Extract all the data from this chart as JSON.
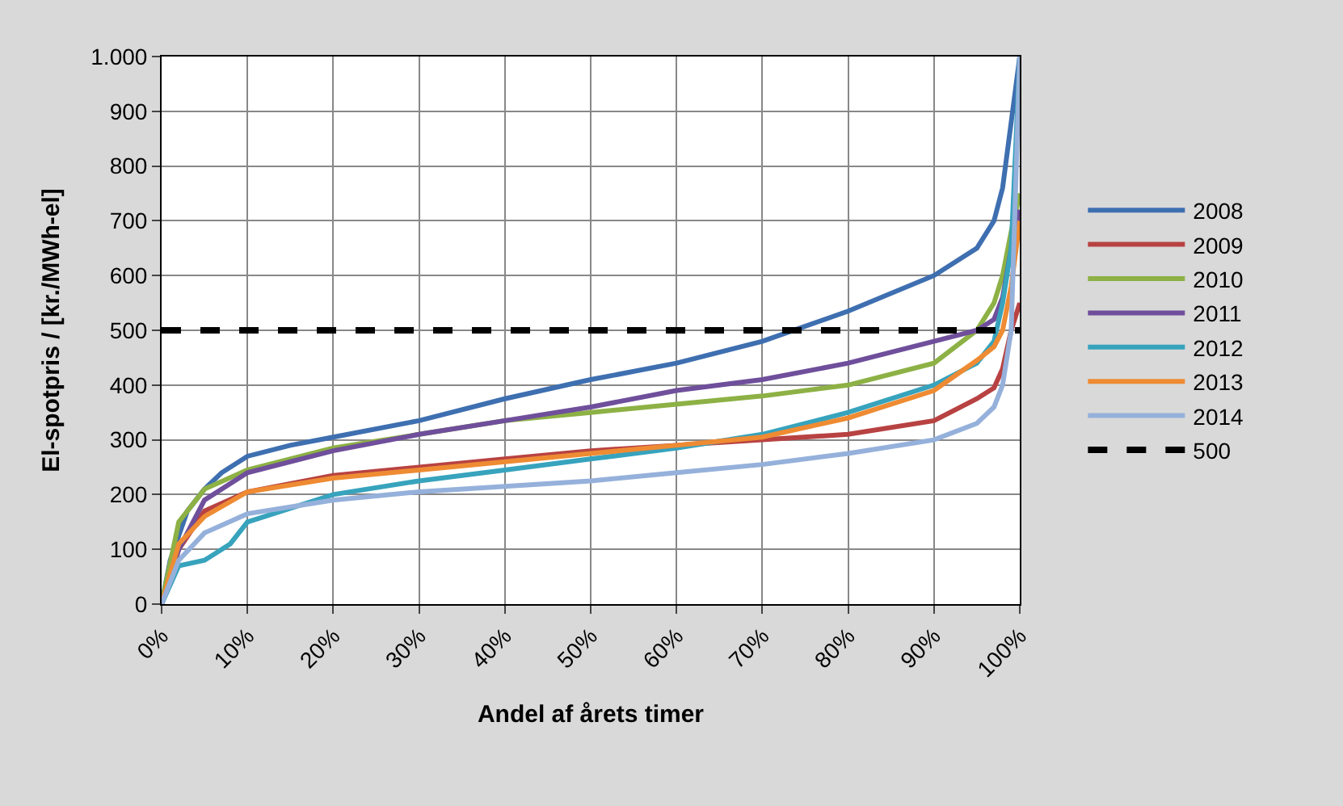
{
  "chart_data": {
    "type": "line",
    "xlabel": "Andel af årets timer",
    "ylabel": "El-spotpris / [kr./MWh-el]",
    "xlim": [
      0,
      100
    ],
    "xticks": [
      {
        "value": 0,
        "label": "0%"
      },
      {
        "value": 10,
        "label": "10%"
      },
      {
        "value": 20,
        "label": "20%"
      },
      {
        "value": 30,
        "label": "30%"
      },
      {
        "value": 40,
        "label": "40%"
      },
      {
        "value": 50,
        "label": "50%"
      },
      {
        "value": 60,
        "label": "60%"
      },
      {
        "value": 70,
        "label": "70%"
      },
      {
        "value": 80,
        "label": "80%"
      },
      {
        "value": 90,
        "label": "90%"
      },
      {
        "value": 100,
        "label": "100%"
      }
    ],
    "ylim": [
      0,
      1000
    ],
    "yticks": [
      0,
      100,
      200,
      300,
      400,
      500,
      600,
      700,
      800,
      900,
      {
        "value": 1000,
        "label": "1.000"
      }
    ],
    "grid": true,
    "legend": "right",
    "line_style": "solid",
    "marker": "none",
    "series": [
      {
        "name": "2008",
        "color": "#3e6fb0",
        "x": [
          0,
          1,
          3,
          5,
          7,
          10,
          15,
          20,
          30,
          40,
          50,
          60,
          70,
          80,
          90,
          95,
          97,
          98,
          99,
          100
        ],
        "values": [
          0,
          80,
          170,
          210,
          240,
          270,
          290,
          305,
          335,
          375,
          410,
          440,
          480,
          535,
          600,
          650,
          700,
          760,
          880,
          1000
        ]
      },
      {
        "name": "2009",
        "color": "#b84242",
        "x": [
          0,
          2,
          5,
          10,
          20,
          30,
          40,
          50,
          60,
          70,
          80,
          90,
          95,
          97,
          98,
          99,
          100
        ],
        "values": [
          0,
          100,
          170,
          205,
          235,
          250,
          265,
          280,
          290,
          300,
          310,
          335,
          375,
          395,
          430,
          500,
          550
        ]
      },
      {
        "name": "2010",
        "color": "#8db145",
        "x": [
          0,
          2,
          5,
          10,
          20,
          30,
          40,
          50,
          60,
          70,
          80,
          90,
          95,
          97,
          98,
          99,
          100
        ],
        "values": [
          0,
          150,
          210,
          245,
          285,
          310,
          335,
          350,
          365,
          380,
          400,
          440,
          500,
          550,
          600,
          680,
          750
        ]
      },
      {
        "name": "2011",
        "color": "#6f4f9b",
        "x": [
          0,
          2,
          5,
          10,
          20,
          30,
          40,
          50,
          60,
          70,
          80,
          90,
          95,
          97,
          98,
          99,
          100
        ],
        "values": [
          0,
          100,
          190,
          240,
          280,
          310,
          335,
          360,
          390,
          410,
          440,
          480,
          500,
          520,
          560,
          650,
          720
        ]
      },
      {
        "name": "2012",
        "color": "#37a3bd",
        "x": [
          0,
          2,
          5,
          8,
          10,
          20,
          30,
          40,
          50,
          60,
          70,
          80,
          90,
          95,
          97,
          98,
          99,
          100
        ],
        "values": [
          0,
          70,
          80,
          110,
          150,
          200,
          225,
          245,
          265,
          285,
          310,
          350,
          400,
          440,
          480,
          550,
          650,
          1000
        ]
      },
      {
        "name": "2013",
        "color": "#ee8b33",
        "x": [
          0,
          2,
          5,
          10,
          20,
          30,
          40,
          50,
          60,
          70,
          80,
          90,
          95,
          97,
          98,
          99,
          100
        ],
        "values": [
          0,
          110,
          160,
          205,
          230,
          245,
          260,
          275,
          290,
          305,
          340,
          390,
          445,
          470,
          500,
          580,
          700
        ]
      },
      {
        "name": "2014",
        "color": "#95b1db",
        "x": [
          0,
          2,
          5,
          10,
          20,
          30,
          40,
          50,
          60,
          70,
          80,
          90,
          95,
          97,
          98,
          99,
          100
        ],
        "values": [
          0,
          80,
          130,
          165,
          190,
          205,
          215,
          225,
          240,
          255,
          275,
          300,
          330,
          360,
          400,
          500,
          1000
        ]
      },
      {
        "name": "500",
        "color": "#000000",
        "line_style": "dashed",
        "x": [
          0,
          100
        ],
        "values": [
          500,
          500
        ]
      }
    ]
  }
}
